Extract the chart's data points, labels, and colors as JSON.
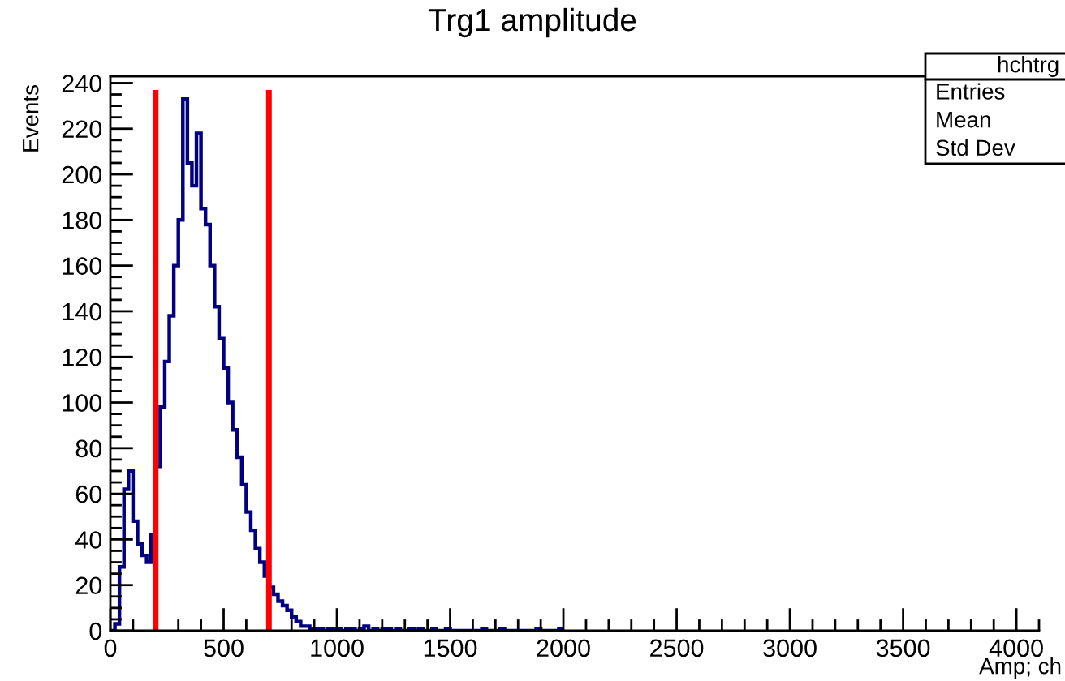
{
  "chart_data": {
    "type": "histogram",
    "title": "Trg1 amplitude",
    "xlabel": "Amp; ch",
    "ylabel": "Events",
    "bins": [
      0,
      20,
      40,
      60,
      80,
      100,
      120,
      140,
      160,
      180,
      200,
      220,
      240,
      260,
      280,
      300,
      320,
      340,
      360,
      380,
      400,
      420,
      440,
      460,
      480,
      500,
      520,
      540,
      560,
      580,
      600,
      620,
      640,
      660,
      680,
      700,
      720,
      740,
      760,
      780,
      800,
      820,
      840,
      860,
      880,
      900,
      920,
      940,
      960,
      980,
      1000,
      1020,
      1040,
      1060,
      1080,
      1100,
      1120,
      1140,
      1160,
      1180,
      1200,
      1220,
      1240,
      1260,
      1280,
      1300,
      1320,
      1340,
      1360,
      1380,
      1400,
      1420,
      1440,
      1460,
      1480,
      1500,
      1520,
      1540,
      1560,
      1580,
      1600,
      1620,
      1640,
      1660,
      1680,
      1700,
      1720,
      1740,
      1760,
      1780,
      1800,
      1820,
      1840,
      1860,
      1880,
      1900,
      1920,
      1940,
      1960,
      1980,
      2000
    ],
    "values": [
      0,
      3,
      28,
      62,
      70,
      48,
      38,
      33,
      30,
      42,
      72,
      98,
      118,
      138,
      160,
      180,
      233,
      205,
      195,
      218,
      185,
      178,
      160,
      142,
      128,
      115,
      100,
      88,
      76,
      64,
      52,
      44,
      36,
      30,
      24,
      19,
      16,
      13,
      11,
      9,
      6,
      4,
      2,
      2,
      1,
      1,
      1,
      0,
      1,
      1,
      1,
      0,
      1,
      1,
      0,
      1,
      2,
      0,
      1,
      0,
      1,
      1,
      0,
      1,
      0,
      0,
      1,
      0,
      1,
      0,
      0,
      1,
      0,
      0,
      1,
      0,
      0,
      0,
      0,
      0,
      0,
      0,
      1,
      0,
      0,
      0,
      1,
      0,
      0,
      0,
      0,
      0,
      0,
      0,
      1,
      0,
      0,
      0,
      0,
      1
    ],
    "color": "#000080",
    "xlim": [
      0,
      4100
    ],
    "xticks": [
      0,
      500,
      1000,
      1500,
      2000,
      2500,
      3000,
      3500,
      4000
    ],
    "ylim": [
      0,
      243
    ],
    "yticks": [
      0,
      20,
      40,
      60,
      80,
      100,
      120,
      140,
      160,
      180,
      200,
      220,
      240
    ],
    "ref_lines": [
      {
        "axis": "x",
        "value": 200,
        "color": "#ff0000"
      },
      {
        "axis": "x",
        "value": 700,
        "color": "#ff0000"
      }
    ],
    "annotations": [
      "hchtrg",
      "Entries",
      "Mean",
      "Std Dev"
    ],
    "grid": false
  }
}
